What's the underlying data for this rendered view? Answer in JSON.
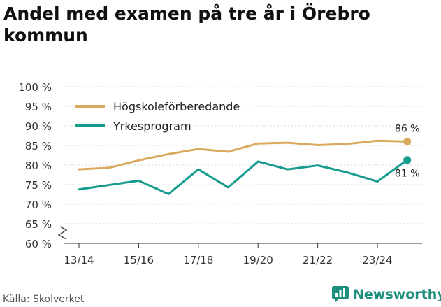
{
  "title": "Andel med examen på tre år i Örebro kommun",
  "source": "Källa: Skolverket",
  "brand": "Newsworthy",
  "chart_data": {
    "type": "line",
    "title": "Andel med examen på tre år i Örebro kommun",
    "xlabel": "",
    "ylabel": "",
    "ylim": [
      60,
      100
    ],
    "y_ticks": [
      "100 %",
      "95 %",
      "90 %",
      "85 %",
      "80 %",
      "75 %",
      "70 %",
      "65 %",
      "60 %"
    ],
    "y_tick_values": [
      100,
      95,
      90,
      85,
      80,
      75,
      70,
      65,
      60
    ],
    "axis_break": true,
    "grid": true,
    "x": [
      "13/14",
      "14/15",
      "15/16",
      "16/17",
      "17/18",
      "18/19",
      "19/20",
      "20/21",
      "21/22",
      "22/23",
      "23/24",
      "24/25"
    ],
    "x_tick_labels": [
      "13/14",
      "15/16",
      "17/18",
      "19/20",
      "21/22",
      "23/24"
    ],
    "legend_position": "top-left",
    "series": [
      {
        "name": "Högskoleförberedande",
        "color": "#d9aa5e",
        "values": [
          78.9,
          79.3,
          81.2,
          82.8,
          84.1,
          83.4,
          85.5,
          85.7,
          85.1,
          85.4,
          86.2,
          86.0
        ],
        "end_label": "86 %"
      },
      {
        "name": "Yrkesprogram",
        "color": "#169c8d",
        "values": [
          73.8,
          74.9,
          76.0,
          72.6,
          78.9,
          74.3,
          80.9,
          78.9,
          79.9,
          78.1,
          75.8,
          81.3
        ],
        "end_label": "81 %"
      }
    ]
  }
}
